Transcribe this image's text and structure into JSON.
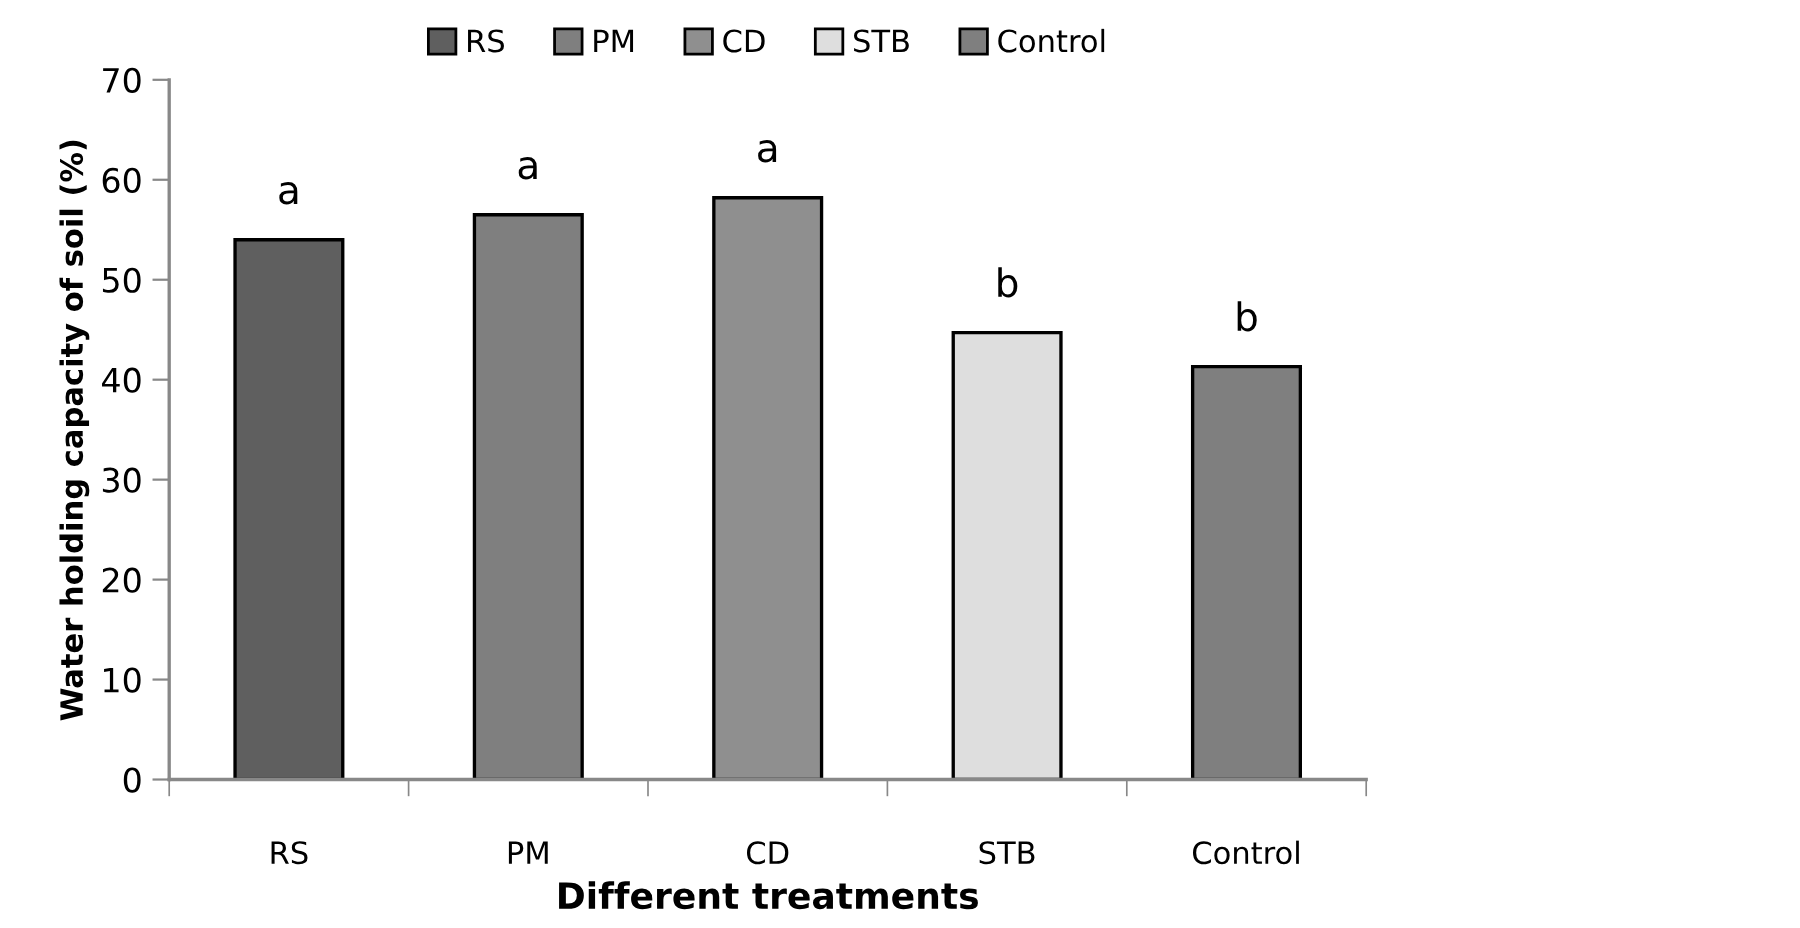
{
  "chart_data": {
    "type": "bar",
    "xlabel": "Different treatments",
    "ylabel": "Water holding capacity of soil (%)",
    "categories": [
      "RS",
      "PM",
      "CD",
      "STB",
      "Control"
    ],
    "series": [
      {
        "name": "RS",
        "color": "#5f5f5f",
        "values": [
          54.0,
          null,
          null,
          null,
          null
        ]
      },
      {
        "name": "PM",
        "color": "#7f7f7f",
        "values": [
          null,
          56.5,
          null,
          null,
          null
        ]
      },
      {
        "name": "CD",
        "color": "#8f8f8f",
        "values": [
          null,
          null,
          58.2,
          null,
          null
        ]
      },
      {
        "name": "STB",
        "color": "#dedede",
        "values": [
          null,
          null,
          null,
          44.7,
          null
        ]
      },
      {
        "name": "Control",
        "color": "#7f7f7f",
        "values": [
          null,
          null,
          null,
          null,
          41.3
        ]
      }
    ],
    "ylim": [
      0,
      70
    ],
    "yticks": [
      0,
      10,
      20,
      30,
      40,
      50,
      60,
      70
    ],
    "grid": false,
    "legend": "top",
    "annotations": [
      {
        "text": "a",
        "x": "RS",
        "y": 54.0
      },
      {
        "text": "a",
        "x": "PM",
        "y": 56.5
      },
      {
        "text": "a",
        "x": "CD",
        "y": 58.2
      },
      {
        "text": "b",
        "x": "STB",
        "y": 44.7
      },
      {
        "text": "b",
        "x": "Control",
        "y": 41.3
      }
    ]
  }
}
